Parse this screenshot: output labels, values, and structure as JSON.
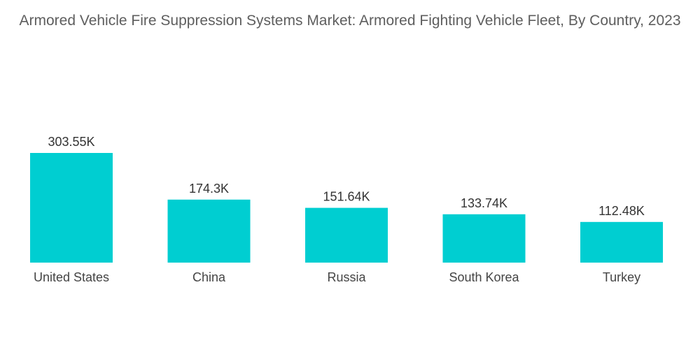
{
  "chart_data": {
    "type": "bar",
    "title": "Armored Vehicle Fire Suppression Systems Market: Armored Fighting Vehicle Fleet, By Country, 2023",
    "categories": [
      "United States",
      "China",
      "Russia",
      "South Korea",
      "Turkey"
    ],
    "values": [
      303.55,
      174.3,
      151.64,
      133.74,
      112.48
    ],
    "data_labels": [
      "303.55K",
      "174.3K",
      "151.64K",
      "133.74K",
      "112.48K"
    ],
    "xlabel": "",
    "ylabel": "",
    "ylim": [
      0,
      303.55
    ],
    "grid": false,
    "legend": "none",
    "bar_color": "#00CED1"
  }
}
